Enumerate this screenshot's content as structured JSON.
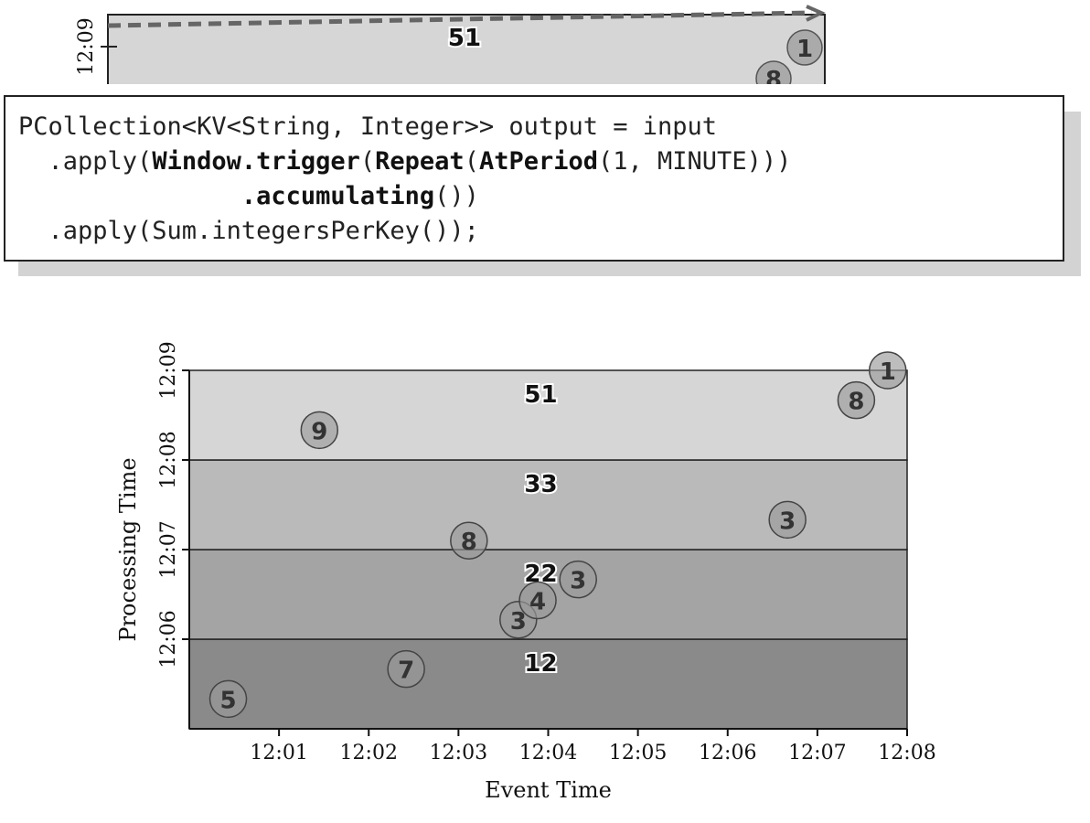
{
  "top_fragment": {
    "y_tick": "12:09",
    "pane_sum": "51",
    "dots": [
      "1",
      "8"
    ]
  },
  "code": {
    "line1": "PCollection<KV<String, Integer>> output = input",
    "line2_pre": "  .apply(",
    "line2_b1": "Window.trigger",
    "line2_p1": "(",
    "line2_b2": "Repeat",
    "line2_p2": "(",
    "line2_b3": "AtPeriod",
    "line2_post": "(1, MINUTE)))",
    "line3_pre": "               ",
    "line3_b1": ".accumulating",
    "line3_post": "())",
    "line4": "  .apply(Sum.integersPerKey());"
  },
  "chart_data": {
    "type": "scatter",
    "xlabel": "Event Time",
    "ylabel": "Processing Time",
    "x_ticks": [
      "12:01",
      "12:02",
      "12:03",
      "12:04",
      "12:05",
      "12:06",
      "12:07",
      "12:08"
    ],
    "y_ticks": [
      "12:06",
      "12:07",
      "12:08",
      "12:09"
    ],
    "xlim": [
      "12:00",
      "12:08"
    ],
    "ylim": [
      "12:05",
      "12:09"
    ],
    "panes": [
      {
        "from": "12:05",
        "to": "12:06",
        "sum": "12",
        "color": "#8a8a8a"
      },
      {
        "from": "12:06",
        "to": "12:07",
        "sum": "22",
        "color": "#a4a4a4"
      },
      {
        "from": "12:07",
        "to": "12:08",
        "sum": "33",
        "color": "#bababa"
      },
      {
        "from": "12:08",
        "to": "12:09",
        "sum": "51",
        "color": "#d6d6d6"
      }
    ],
    "points": [
      {
        "event_time": "12:00:26",
        "processing_time": "12:05:20",
        "value": "5"
      },
      {
        "event_time": "12:02:25",
        "processing_time": "12:05:40",
        "value": "7"
      },
      {
        "event_time": "12:03:40",
        "processing_time": "12:06:13",
        "value": "3"
      },
      {
        "event_time": "12:03:53",
        "processing_time": "12:06:26",
        "value": "4"
      },
      {
        "event_time": "12:04:20",
        "processing_time": "12:06:40",
        "value": "3"
      },
      {
        "event_time": "12:03:07",
        "processing_time": "12:07:06",
        "value": "8"
      },
      {
        "event_time": "12:06:40",
        "processing_time": "12:07:20",
        "value": "3"
      },
      {
        "event_time": "12:01:27",
        "processing_time": "12:08:20",
        "value": "9"
      },
      {
        "event_time": "12:07:26",
        "processing_time": "12:08:40",
        "value": "8"
      },
      {
        "event_time": "12:07:47",
        "processing_time": "12:09:00",
        "value": "1"
      }
    ]
  }
}
